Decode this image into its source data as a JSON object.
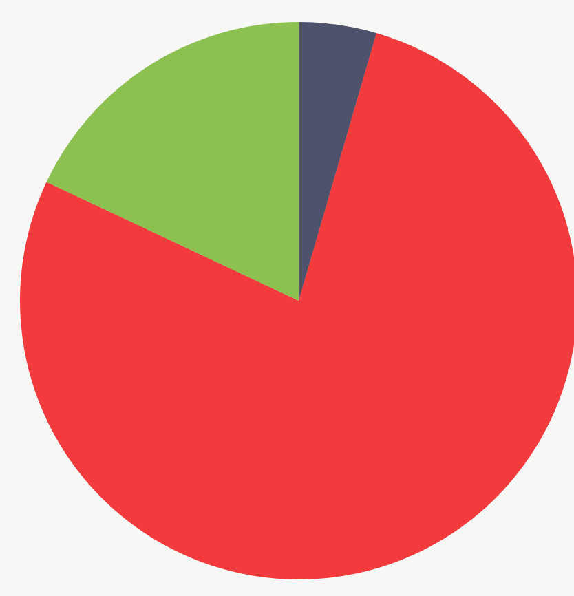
{
  "chart_data": {
    "type": "pie",
    "title": "",
    "legend": "none",
    "start_angle_deg": 0,
    "direction": "clockwise",
    "slices": [
      {
        "value": 4.5,
        "color": "#4e536b"
      },
      {
        "value": 77.5,
        "color": "#f33a3c"
      },
      {
        "value": 18.0,
        "color": "#8cc152"
      }
    ]
  }
}
